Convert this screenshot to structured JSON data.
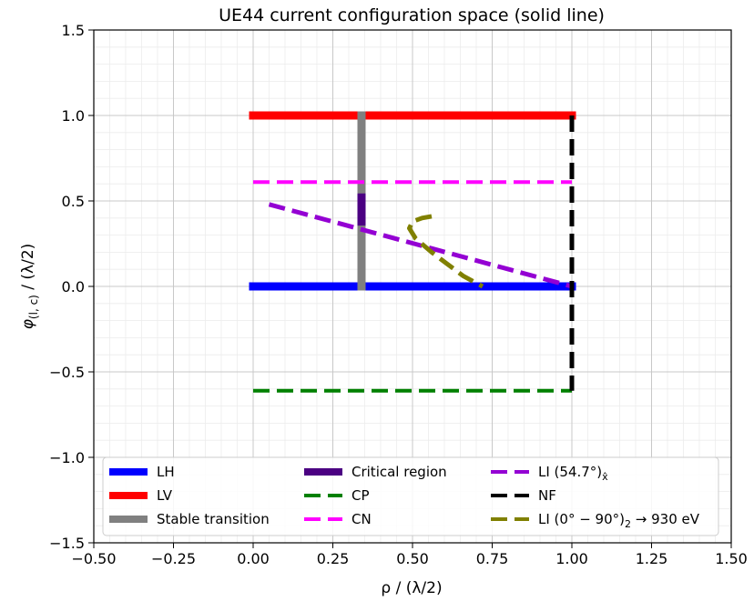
{
  "chart_data": {
    "type": "line",
    "title": "UE44 current configuration space (solid line)",
    "xlabel": "ρ / (λ/2)",
    "ylabel_main": "φ",
    "ylabel_sub": "(l, c)",
    "ylabel_rest": " / (λ/2)",
    "xlim": [
      -0.5,
      1.5
    ],
    "ylim": [
      -1.5,
      1.5
    ],
    "x_ticks": [
      -0.5,
      -0.25,
      0.0,
      0.25,
      0.5,
      0.75,
      1.0,
      1.25,
      1.5
    ],
    "x_tick_labels": [
      "−0.50",
      "−0.25",
      "0.00",
      "0.25",
      "0.50",
      "0.75",
      "1.00",
      "1.25",
      "1.50"
    ],
    "y_ticks": [
      -1.5,
      -1.0,
      -0.5,
      0.0,
      0.5,
      1.0,
      1.5
    ],
    "y_tick_labels": [
      "−1.5",
      "−1.0",
      "−0.5",
      "0.0",
      "0.5",
      "1.0",
      "1.5"
    ],
    "grid": true,
    "minor_grid": true,
    "legend_position": "lower-center",
    "series": [
      {
        "name": "LH",
        "color": "#0000ff",
        "style": "solid",
        "width": 9,
        "points": [
          [
            0.0,
            0.0
          ],
          [
            1.0,
            0.0
          ]
        ]
      },
      {
        "name": "LV",
        "color": "#ff0000",
        "style": "solid",
        "width": 9,
        "points": [
          [
            0.0,
            1.0
          ],
          [
            1.0,
            1.0
          ]
        ]
      },
      {
        "name": "Stable transition",
        "color": "#808080",
        "style": "solid",
        "width": 9,
        "points": [
          [
            0.34,
            0.0
          ],
          [
            0.34,
            1.0
          ]
        ]
      },
      {
        "name": "Critical region",
        "color": "#4b0082",
        "style": "solid",
        "width": 9,
        "points": [
          [
            0.34,
            0.38
          ],
          [
            0.34,
            0.52
          ]
        ]
      },
      {
        "name": "CP",
        "color": "#008000",
        "style": "dashed",
        "width": 4,
        "points": [
          [
            0.0,
            -0.61
          ],
          [
            1.0,
            -0.61
          ]
        ]
      },
      {
        "name": "CN",
        "color": "#ff00ff",
        "style": "dashed",
        "width": 4,
        "points": [
          [
            0.0,
            0.61
          ],
          [
            1.0,
            0.61
          ]
        ]
      },
      {
        "name": "LI (54.7°)",
        "name_sub": "x̂",
        "color": "#9400d3",
        "style": "dashed",
        "width": 5,
        "points": [
          [
            0.05,
            0.48
          ],
          [
            1.0,
            0.0
          ]
        ]
      },
      {
        "name": "NF",
        "color": "#000000",
        "style": "dashed",
        "width": 5,
        "points": [
          [
            1.0,
            1.0
          ],
          [
            1.0,
            -0.61
          ]
        ]
      },
      {
        "name": "LI (0° − 90°)",
        "name_sub": "2",
        "name_suffix": " → 930 eV",
        "color": "#808000",
        "style": "dashed",
        "width": 5,
        "points": [
          [
            0.56,
            0.41
          ],
          [
            0.53,
            0.4
          ],
          [
            0.5,
            0.38
          ],
          [
            0.49,
            0.34
          ],
          [
            0.51,
            0.28
          ],
          [
            0.56,
            0.2
          ],
          [
            0.61,
            0.13
          ],
          [
            0.66,
            0.06
          ],
          [
            0.72,
            0.0
          ]
        ]
      }
    ]
  }
}
